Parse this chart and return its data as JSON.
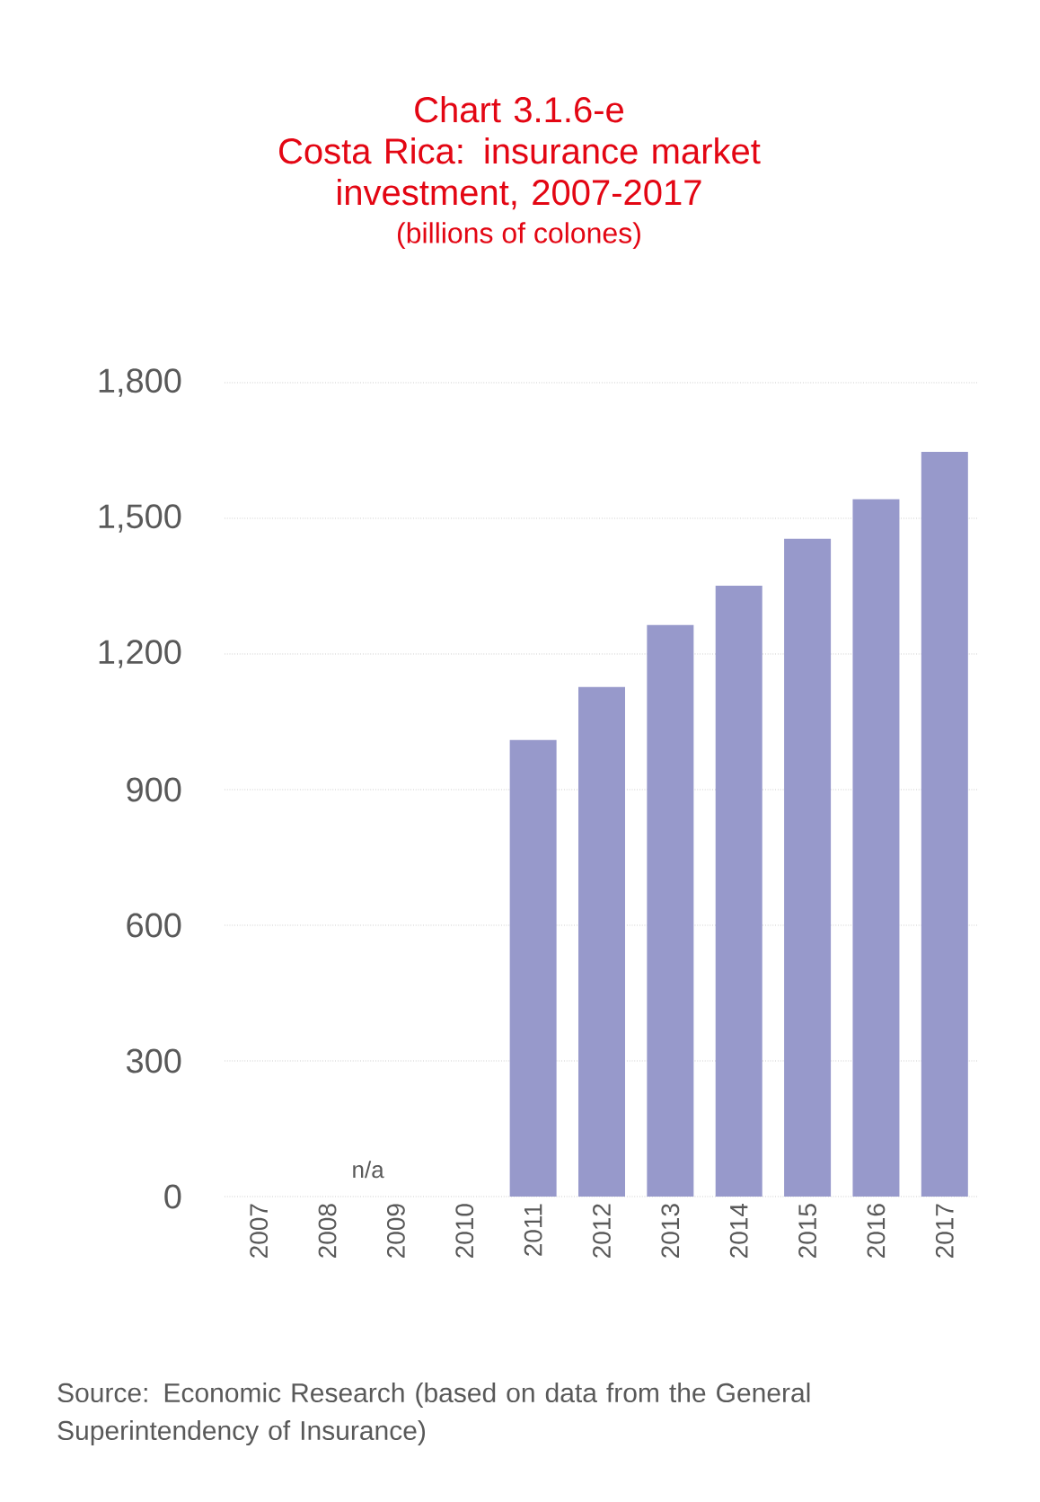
{
  "chart_data": {
    "type": "bar",
    "title": "Chart 3.1.6-e\nCosta Rica: insurance market investment, 2007-2017",
    "subtitle": "(billions of colones)",
    "categories": [
      "2007",
      "2008",
      "2009",
      "2010",
      "2011",
      "2012",
      "2013",
      "2014",
      "2015",
      "2016",
      "2017"
    ],
    "values": [
      null,
      null,
      null,
      null,
      1010,
      1127,
      1264,
      1351,
      1455,
      1542,
      1647
    ],
    "color": "#9799cb",
    "ylim": [
      0,
      1800
    ],
    "yticks": [
      0,
      300,
      600,
      900,
      {
        "value": 1200,
        "label": "1,200"
      },
      {
        "value": 1500,
        "label": "1,500"
      },
      {
        "value": 1800,
        "label": "1,800"
      }
    ],
    "grid": "y",
    "annotations": [
      "n/a",
      "Source: Economic Research (based on data from the General Superintendency of Insurance)"
    ]
  }
}
